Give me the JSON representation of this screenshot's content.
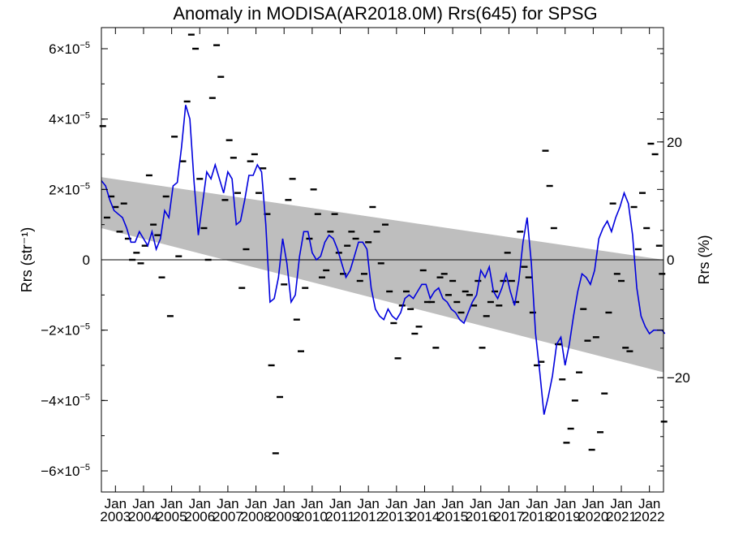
{
  "chart_data": {
    "type": "line",
    "title": "Anomaly in MODISA(AR2018.0M) Rrs(645) for SPSG",
    "ylabel": "Rrs (str⁻¹)",
    "ylabel_right": "Rrs (%)",
    "xlabel": "",
    "x_range": [
      2002.5,
      2022.5
    ],
    "ylim": [
      -6.6e-05,
      6.6e-05
    ],
    "ylim_right": [
      -39.4,
      39.4
    ],
    "y_ticks": [
      {
        "value": -6e-05,
        "label": "−6×10",
        "exp": "−5"
      },
      {
        "value": -4e-05,
        "label": "−4×10",
        "exp": "−5"
      },
      {
        "value": -2e-05,
        "label": "−2×10",
        "exp": "−5"
      },
      {
        "value": 0,
        "label": "0",
        "exp": ""
      },
      {
        "value": 2e-05,
        "label": "2×10",
        "exp": "−5"
      },
      {
        "value": 4e-05,
        "label": "4×10",
        "exp": "−5"
      },
      {
        "value": 6e-05,
        "label": "6×10",
        "exp": "−5"
      }
    ],
    "y_ticks_right": [
      {
        "value": -20,
        "label": "−20"
      },
      {
        "value": 0,
        "label": "0"
      },
      {
        "value": 20,
        "label": "20"
      }
    ],
    "x_ticks": [
      {
        "value": 2003,
        "month": "Jan",
        "year": "2003"
      },
      {
        "value": 2004,
        "month": "Jan",
        "year": "2004"
      },
      {
        "value": 2005,
        "month": "Jan",
        "year": "2005"
      },
      {
        "value": 2006,
        "month": "Jan",
        "year": "2006"
      },
      {
        "value": 2007,
        "month": "Jan",
        "year": "2007"
      },
      {
        "value": 2008,
        "month": "Jan",
        "year": "2008"
      },
      {
        "value": 2009,
        "month": "Jan",
        "year": "2009"
      },
      {
        "value": 2010,
        "month": "Jan",
        "year": "2010"
      },
      {
        "value": 2011,
        "month": "Jan",
        "year": "2011"
      },
      {
        "value": 2012,
        "month": "Jan",
        "year": "2012"
      },
      {
        "value": 2013,
        "month": "Jan",
        "year": "2013"
      },
      {
        "value": 2014,
        "month": "Jan",
        "year": "2014"
      },
      {
        "value": 2015,
        "month": "Jan",
        "year": "2015"
      },
      {
        "value": 2016,
        "month": "Jan",
        "year": "2016"
      },
      {
        "value": 2017,
        "month": "Jan",
        "year": "2017"
      },
      {
        "value": 2018,
        "month": "Jan",
        "year": "2018"
      },
      {
        "value": 2019,
        "month": "Jan",
        "year": "2019"
      },
      {
        "value": 2020,
        "month": "Jan",
        "year": "2020"
      },
      {
        "value": 2021,
        "month": "Jan",
        "year": "2021"
      },
      {
        "value": 2022,
        "month": "Jan",
        "year": "2022"
      }
    ],
    "trend_band": {
      "x": [
        2002.5,
        2022.5
      ],
      "upper": [
        2.35e-05,
        0.0
      ],
      "lower": [
        9e-06,
        -3.2e-05
      ]
    },
    "zero_line": 0,
    "colors": {
      "line": "#0000dd",
      "band": "#bebebe",
      "points": "#000000",
      "axis": "#000000"
    },
    "series": [
      {
        "kind": "line",
        "x": [
          2002.5,
          2002.65,
          2002.8,
          2002.95,
          2003.1,
          2003.25,
          2003.4,
          2003.55,
          2003.7,
          2003.85,
          2004.0,
          2004.15,
          2004.3,
          2004.45,
          2004.6,
          2004.75,
          2004.9,
          2005.05,
          2005.2,
          2005.35,
          2005.5,
          2005.65,
          2005.8,
          2005.95,
          2006.1,
          2006.25,
          2006.4,
          2006.55,
          2006.7,
          2006.85,
          2007.0,
          2007.15,
          2007.3,
          2007.45,
          2007.6,
          2007.75,
          2007.9,
          2008.05,
          2008.2,
          2008.35,
          2008.5,
          2008.65,
          2008.8,
          2008.95,
          2009.1,
          2009.25,
          2009.4,
          2009.55,
          2009.7,
          2009.85,
          2010.0,
          2010.15,
          2010.3,
          2010.45,
          2010.6,
          2010.75,
          2010.9,
          2011.05,
          2011.2,
          2011.35,
          2011.5,
          2011.65,
          2011.8,
          2011.95,
          2012.1,
          2012.25,
          2012.4,
          2012.55,
          2012.7,
          2012.85,
          2013.0,
          2013.15,
          2013.3,
          2013.45,
          2013.6,
          2013.75,
          2013.9,
          2014.05,
          2014.2,
          2014.35,
          2014.5,
          2014.65,
          2014.8,
          2014.95,
          2015.1,
          2015.25,
          2015.4,
          2015.55,
          2015.7,
          2015.85,
          2016.0,
          2016.15,
          2016.3,
          2016.45,
          2016.6,
          2016.75,
          2016.9,
          2017.05,
          2017.2,
          2017.35,
          2017.5,
          2017.65,
          2017.8,
          2017.95,
          2018.1,
          2018.25,
          2018.4,
          2018.55,
          2018.7,
          2018.85,
          2019.0,
          2019.15,
          2019.3,
          2019.45,
          2019.6,
          2019.75,
          2019.9,
          2020.05,
          2020.2,
          2020.35,
          2020.5,
          2020.65,
          2020.8,
          2020.95,
          2021.1,
          2021.25,
          2021.4,
          2021.55,
          2021.7,
          2021.85,
          2022.0,
          2022.15,
          2022.3,
          2022.45,
          2022.55
        ],
        "y": [
          2.25e-05,
          2.1e-05,
          1.7e-05,
          1.4e-05,
          1.3e-05,
          1.2e-05,
          9e-06,
          5e-06,
          5e-06,
          8e-06,
          6e-06,
          4e-06,
          8e-06,
          3e-06,
          6e-06,
          1.4e-05,
          1.2e-05,
          2.1e-05,
          2.2e-05,
          3.2e-05,
          4.4e-05,
          4e-05,
          2.2e-05,
          7e-06,
          1.6e-05,
          2.5e-05,
          2.3e-05,
          2.7e-05,
          2.3e-05,
          1.9e-05,
          2.5e-05,
          2.3e-05,
          1e-05,
          1.1e-05,
          1.7e-05,
          2.4e-05,
          2.4e-05,
          2.7e-05,
          2.5e-05,
          1e-05,
          -1.2e-05,
          -1.1e-05,
          -5e-06,
          6e-06,
          -1e-06,
          -1.2e-05,
          -1e-05,
          1e-06,
          8e-06,
          8e-06,
          2e-06,
          0.0,
          1e-06,
          5e-06,
          7e-06,
          6e-06,
          3e-06,
          -1e-06,
          -5e-06,
          -3e-06,
          1e-06,
          5e-06,
          5e-06,
          3e-06,
          -8e-06,
          -1.4e-05,
          -1.6e-05,
          -1.7e-05,
          -1.4e-05,
          -1.6e-05,
          -1.7e-05,
          -1.5e-05,
          -1.1e-05,
          -1e-05,
          -1.1e-05,
          -9e-06,
          -7e-06,
          -7e-06,
          -1.1e-05,
          -9e-06,
          -8e-06,
          -1.1e-05,
          -1.2e-05,
          -1.4e-05,
          -1.5e-05,
          -1.7e-05,
          -1.8e-05,
          -1.5e-05,
          -1.2e-05,
          -1e-05,
          -3e-06,
          -5e-06,
          -2e-06,
          -9e-06,
          -1.1e-05,
          -8e-06,
          -4e-06,
          -9e-06,
          -1.3e-05,
          -6e-06,
          5e-06,
          1.2e-05,
          -1e-06,
          -2.1e-05,
          -3.2e-05,
          -4.4e-05,
          -3.9e-05,
          -3.3e-05,
          -2.4e-05,
          -2.2e-05,
          -3e-05,
          -2.4e-05,
          -1.6e-05,
          -9e-06,
          -4e-06,
          -5e-06,
          -7e-06,
          -3e-06,
          6e-06,
          9e-06,
          1.1e-05,
          8e-06,
          1.2e-05,
          1.5e-05,
          1.9e-05,
          1.6e-05,
          7e-06,
          -8e-06,
          -1.6e-05,
          -1.9e-05,
          -2.1e-05,
          -2e-05,
          -2e-05,
          -2e-05,
          -2.1e-05
        ]
      },
      {
        "kind": "markers",
        "x": [
          2002.55,
          2002.7,
          2002.85,
          2003.0,
          2003.15,
          2003.3,
          2003.45,
          2003.6,
          2003.75,
          2003.9,
          2004.05,
          2004.2,
          2004.35,
          2004.5,
          2004.65,
          2004.8,
          2004.95,
          2005.1,
          2005.25,
          2005.4,
          2005.55,
          2005.7,
          2005.85,
          2006.0,
          2006.15,
          2006.3,
          2006.45,
          2006.6,
          2006.75,
          2006.9,
          2007.05,
          2007.2,
          2007.35,
          2007.5,
          2007.65,
          2007.8,
          2007.95,
          2008.1,
          2008.25,
          2008.4,
          2008.55,
          2008.7,
          2008.85,
          2009.0,
          2009.15,
          2009.3,
          2009.45,
          2009.6,
          2009.75,
          2009.9,
          2010.05,
          2010.2,
          2010.35,
          2010.5,
          2010.65,
          2010.8,
          2010.95,
          2011.1,
          2011.25,
          2011.4,
          2011.55,
          2011.7,
          2011.85,
          2012.0,
          2012.15,
          2012.3,
          2012.45,
          2012.6,
          2012.75,
          2012.9,
          2013.05,
          2013.2,
          2013.35,
          2013.5,
          2013.65,
          2013.8,
          2013.95,
          2014.1,
          2014.25,
          2014.4,
          2014.55,
          2014.7,
          2014.85,
          2015.0,
          2015.15,
          2015.3,
          2015.45,
          2015.6,
          2015.75,
          2015.9,
          2016.05,
          2016.2,
          2016.35,
          2016.5,
          2016.65,
          2016.8,
          2016.95,
          2017.1,
          2017.25,
          2017.4,
          2017.55,
          2017.7,
          2017.85,
          2018.0,
          2018.15,
          2018.3,
          2018.45,
          2018.6,
          2018.75,
          2018.9,
          2019.05,
          2019.2,
          2019.35,
          2019.5,
          2019.65,
          2019.8,
          2019.95,
          2020.1,
          2020.25,
          2020.4,
          2020.55,
          2020.7,
          2020.85,
          2021.0,
          2021.15,
          2021.3,
          2021.45,
          2021.6,
          2021.75,
          2021.9,
          2022.05,
          2022.2,
          2022.35,
          2022.45,
          2022.52
        ],
        "y": [
          3.8e-05,
          1.2e-05,
          1.8e-05,
          1.5e-05,
          8e-06,
          1.6e-05,
          6e-06,
          0.0,
          2e-06,
          -1e-06,
          4e-06,
          2.4e-05,
          1e-05,
          7e-06,
          -5e-06,
          1.8e-05,
          -1.6e-05,
          3.5e-05,
          1e-06,
          2.8e-05,
          4.5e-05,
          6.4e-05,
          6e-05,
          2.3e-05,
          9e-06,
          0.0,
          4.6e-05,
          6.1e-05,
          5.2e-05,
          1.7e-05,
          3.4e-05,
          2.9e-05,
          1.9e-05,
          -8e-06,
          3e-06,
          2.8e-05,
          3e-05,
          1.9e-05,
          2.6e-05,
          1.3e-05,
          -3e-05,
          -5.5e-05,
          -3.9e-05,
          -7e-06,
          1.7e-05,
          2.3e-05,
          -1.7e-05,
          -2.6e-05,
          -8e-06,
          6e-06,
          2e-05,
          1.3e-05,
          -5e-06,
          -3e-06,
          8e-06,
          1.3e-05,
          2e-06,
          -4e-06,
          4e-06,
          8e-06,
          6e-06,
          -6e-06,
          -4e-06,
          5e-06,
          1.5e-05,
          8e-06,
          -1e-06,
          1e-05,
          -9e-06,
          -1.8e-05,
          -2.8e-05,
          -1.3e-05,
          -9e-06,
          -1.4e-05,
          -2.1e-05,
          -1.9e-05,
          -3e-06,
          -1.2e-05,
          -1.2e-05,
          -2.5e-05,
          -5e-06,
          -4e-06,
          -1e-05,
          -6e-06,
          -1.2e-05,
          -1.5e-05,
          -9e-06,
          -1e-05,
          -1.3e-05,
          -6e-06,
          -2.5e-05,
          -1.6e-05,
          -1.2e-05,
          -9e-06,
          -1.3e-05,
          -6e-06,
          2e-06,
          -6e-06,
          -1.2e-05,
          8e-06,
          -2e-06,
          -5e-06,
          -1.5e-05,
          -3e-05,
          -2.9e-05,
          3.1e-05,
          2.1e-05,
          9e-06,
          -2.4e-05,
          -3.4e-05,
          -5.2e-05,
          -4.8e-05,
          -4e-05,
          -3.2e-05,
          -1.4e-05,
          -2.3e-05,
          -5.4e-05,
          -2.2e-05,
          -4.9e-05,
          -3.8e-05,
          -1.5e-05,
          1.6e-05,
          -4e-06,
          -6e-06,
          -2.5e-05,
          -2.6e-05,
          1.5e-05,
          3e-06,
          1.9e-05,
          9e-06,
          3.3e-05,
          3e-05,
          4e-06,
          -4e-06,
          -4.6e-05
        ]
      }
    ]
  }
}
